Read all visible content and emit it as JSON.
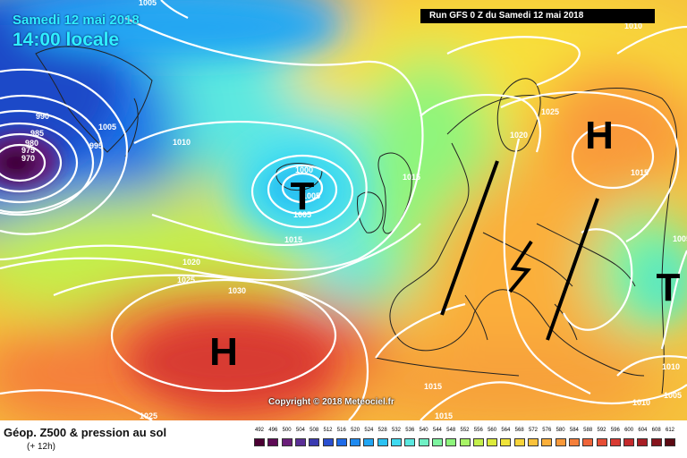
{
  "header": {
    "date": "Samedi 12 mai 2018",
    "local_time": "14:00 locale",
    "run": "Run GFS 0 Z du Samedi 12 mai 2018"
  },
  "copyright": "Copyright © 2018 Meteociel.fr",
  "legend": {
    "title": "Géop. Z500 & pression au sol",
    "subtitle": "(+ 12h)",
    "scale_values": [
      "492",
      "496",
      "500",
      "504",
      "508",
      "512",
      "516",
      "520",
      "524",
      "528",
      "532",
      "536",
      "540",
      "544",
      "548",
      "552",
      "556",
      "560",
      "564",
      "568",
      "572",
      "576",
      "580",
      "584",
      "588",
      "592",
      "596",
      "600",
      "604",
      "608",
      "612"
    ],
    "scale_colors": [
      "#4b0033",
      "#5e0a55",
      "#6b1e7a",
      "#5a2f96",
      "#3a3ab0",
      "#2a4fd0",
      "#1f6be8",
      "#1e8af0",
      "#22a6f3",
      "#2cc2f2",
      "#3fdaf0",
      "#5be8e0",
      "#6ff0c4",
      "#7ef5a0",
      "#8ef57c",
      "#a8f466",
      "#c4f04c",
      "#dceb3c",
      "#efe33a",
      "#f8d43a",
      "#fbc23b",
      "#fbaf3a",
      "#f9993a",
      "#f57f3a",
      "#ef653a",
      "#e64e36",
      "#d83a32",
      "#c42a2c",
      "#a81e25",
      "#86141d",
      "#5c0b14"
    ]
  },
  "map": {
    "pressure_systems": [
      {
        "symbol": "H",
        "color": "#000000"
      },
      {
        "symbol": "H",
        "color": "#000000"
      },
      {
        "symbol": "T",
        "color": "#000000"
      },
      {
        "symbol": "T",
        "color": "#000000"
      }
    ],
    "isobar_labels": [
      "1005",
      "990",
      "985",
      "980",
      "975",
      "970",
      "1005",
      "995",
      "1010",
      "1000",
      "1005",
      "1005",
      "1015",
      "1015",
      "1020",
      "1025",
      "1030",
      "1020",
      "1025",
      "1015",
      "1015",
      "1025",
      "1010",
      "1005",
      "1010",
      "1015",
      "1010",
      "1005"
    ]
  }
}
